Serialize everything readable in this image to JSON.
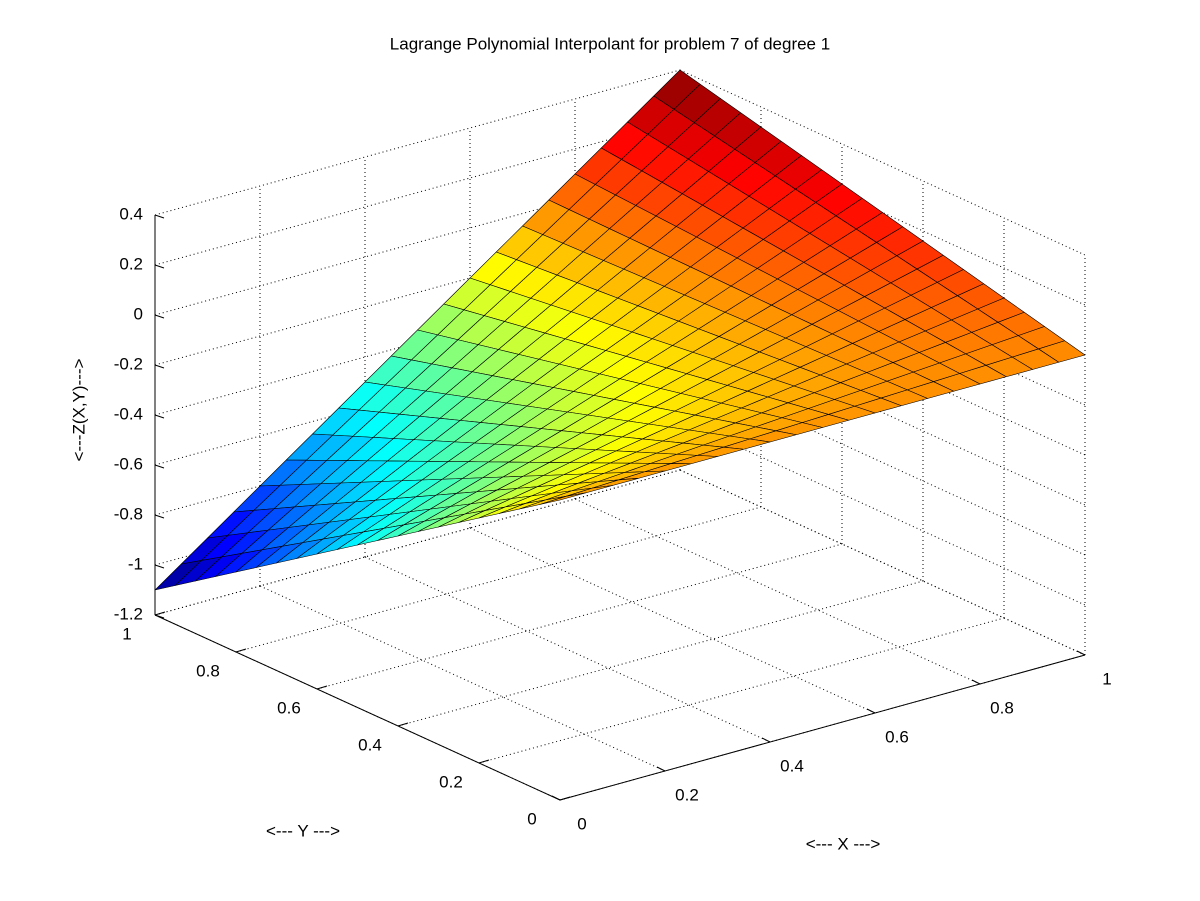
{
  "chart_data": {
    "type": "surface",
    "title": "Lagrange Polynomial Interpolant for problem 7 of degree 1",
    "xlabel": "<--- X --->",
    "ylabel": "<--- Y --->",
    "zlabel": "<---Z(X,Y)--->",
    "x": [
      0,
      1
    ],
    "y": [
      0,
      1
    ],
    "z": [
      [
        0,
        0
      ],
      [
        -1.1,
        0.4
      ]
    ],
    "xlim": [
      0,
      1
    ],
    "ylim": [
      0,
      1
    ],
    "zlim": [
      -1.2,
      0.4
    ],
    "xticks": [
      0,
      0.2,
      0.4,
      0.6,
      0.8,
      1
    ],
    "yticks": [
      0,
      0.2,
      0.4,
      0.6,
      0.8,
      1
    ],
    "zticks": [
      -1.2,
      -1,
      -0.8,
      -0.6,
      -0.4,
      -0.2,
      0,
      0.2,
      0.4
    ],
    "grid": true,
    "colormap": "jet",
    "edgecolor": "#000000"
  }
}
